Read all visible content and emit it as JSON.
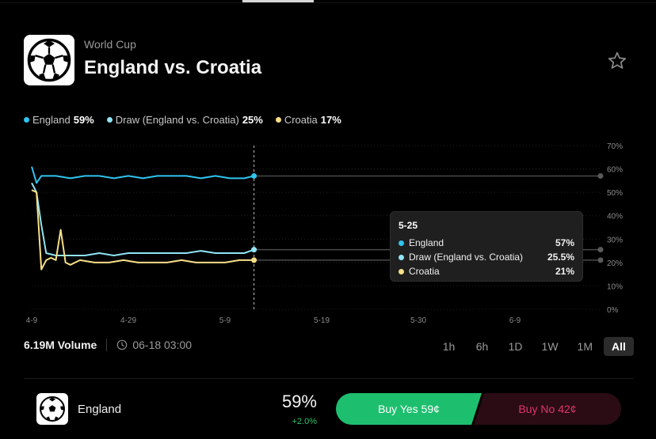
{
  "event": {
    "category": "World Cup",
    "title": "England vs. Croatia",
    "icon": "soccer-ball-icon"
  },
  "legend": [
    {
      "name": "England",
      "value": "59%",
      "color": "#2fc4ef"
    },
    {
      "name": "Draw (England vs. Croatia)",
      "value": "25%",
      "color": "#8fe4f5"
    },
    {
      "name": "Croatia",
      "value": "17%",
      "color": "#f7df86"
    }
  ],
  "chart_data": {
    "type": "line",
    "x_ticks": [
      "4-9",
      "4-29",
      "5-9",
      "5-19",
      "5-30",
      "6-9"
    ],
    "y_ticks": [
      "70%",
      "60%",
      "50%",
      "40%",
      "30%",
      "20%",
      "10%",
      "0%"
    ],
    "ylim": [
      0,
      70
    ],
    "grid": true,
    "series": [
      {
        "name": "England",
        "color": "#2fc4ef",
        "x": [
          "4-9",
          "4-10",
          "4-11",
          "4-14",
          "4-17",
          "4-20",
          "4-23",
          "4-26",
          "4-29",
          "5-2",
          "5-5",
          "5-8",
          "5-11",
          "5-14",
          "5-17",
          "5-20",
          "5-23",
          "5-25"
        ],
        "y": [
          61,
          54,
          57,
          57,
          56,
          57,
          57,
          56,
          57,
          56,
          57,
          57,
          57,
          56,
          57,
          56,
          56,
          57
        ]
      },
      {
        "name": "Draw (England vs. Croatia)",
        "color": "#8fe4f5",
        "x": [
          "4-9",
          "4-10",
          "4-11",
          "4-12",
          "4-14",
          "4-17",
          "4-20",
          "4-23",
          "4-26",
          "4-29",
          "5-2",
          "5-5",
          "5-8",
          "5-11",
          "5-14",
          "5-17",
          "5-20",
          "5-23",
          "5-25"
        ],
        "y": [
          54,
          50,
          36,
          24,
          23,
          23,
          23,
          24,
          23,
          24,
          24,
          24,
          24,
          24,
          25,
          24,
          24,
          24,
          25.5
        ]
      },
      {
        "name": "Croatia",
        "color": "#f7df86",
        "x": [
          "4-9",
          "4-10",
          "4-11",
          "4-12",
          "4-13",
          "4-14",
          "4-15",
          "4-16",
          "4-17",
          "4-19",
          "4-22",
          "4-25",
          "4-28",
          "5-1",
          "5-4",
          "5-7",
          "5-10",
          "5-13",
          "5-16",
          "5-19",
          "5-22",
          "5-25"
        ],
        "y": [
          51,
          50,
          17,
          21,
          22,
          21,
          34,
          20,
          19,
          21,
          20,
          20,
          21,
          20,
          20,
          20,
          21,
          20,
          20,
          20,
          21,
          21
        ]
      }
    ],
    "hover": {
      "date": "5-25",
      "rows": [
        {
          "name": "England",
          "value": "57%",
          "color": "#2fc4ef"
        },
        {
          "name": "Draw (England vs. Croatia)",
          "value": "25.5%",
          "color": "#8fe4f5"
        },
        {
          "name": "Croatia",
          "value": "21%",
          "color": "#f7df86"
        }
      ]
    }
  },
  "stats": {
    "volume": "6.19M Volume",
    "end_time": "06-18 03:00"
  },
  "ranges": [
    "1h",
    "6h",
    "1D",
    "1W",
    "1M",
    "All"
  ],
  "active_range": "All",
  "outcome": {
    "name": "England",
    "percent": "59%",
    "change": "+2.0%",
    "buy_yes": "Buy Yes 59¢",
    "buy_no": "Buy No 42¢"
  }
}
